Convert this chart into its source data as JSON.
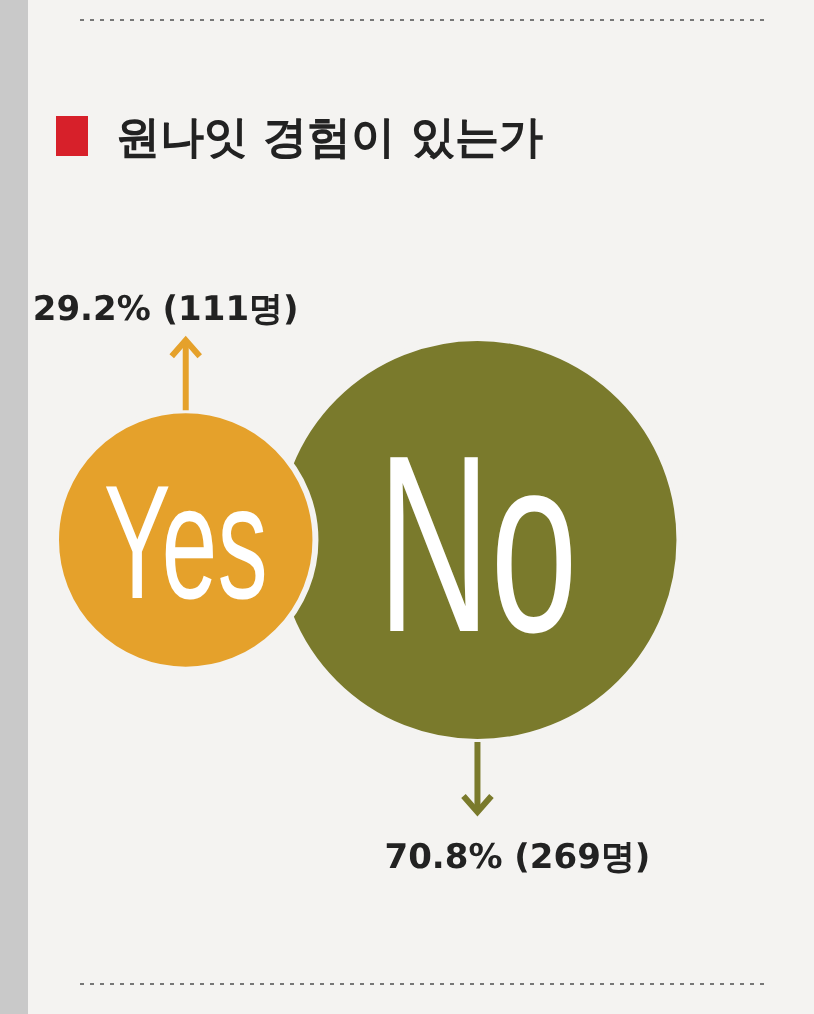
{
  "chart_data": {
    "type": "other",
    "title": "원나잇 경험이 있는가",
    "categories": [
      "Yes",
      "No"
    ],
    "values": [
      29.2,
      70.8
    ],
    "value_labels": [
      "29.2% (111명)",
      "70.8% (269명)"
    ],
    "colors": [
      "#e5a12b",
      "#7a7a2c"
    ]
  }
}
